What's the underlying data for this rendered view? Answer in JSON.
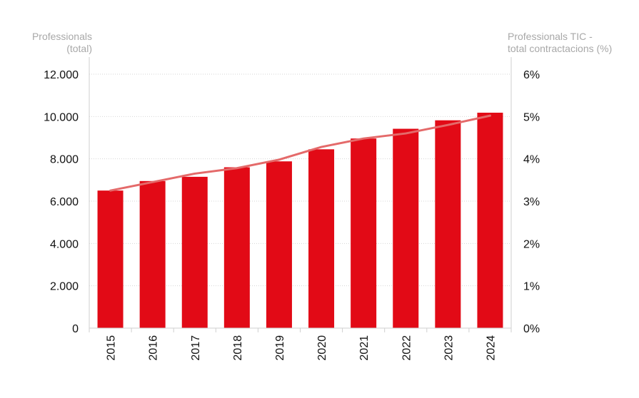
{
  "chart_data": {
    "type": "bar",
    "categories": [
      "2015",
      "2016",
      "2017",
      "2018",
      "2019",
      "2020",
      "2021",
      "2022",
      "2023",
      "2024"
    ],
    "series": [
      {
        "type": "bar",
        "axis": "left",
        "values": [
          6500,
          6950,
          7150,
          7600,
          7880,
          8450,
          8960,
          9420,
          9820,
          10180
        ]
      },
      {
        "type": "line",
        "axis": "right",
        "values": [
          3.25,
          3.45,
          3.65,
          3.78,
          3.98,
          4.28,
          4.48,
          4.6,
          4.8,
          5.02
        ]
      }
    ],
    "ylabel_left": [
      "Professionals",
      "(total)"
    ],
    "ylabel_right": [
      "Professionals TIC -",
      "total contractacions (%)"
    ],
    "ylim_left": [
      0,
      12000
    ],
    "ylim_right": [
      0,
      6
    ],
    "yticks_left": [
      "0",
      "2.000",
      "4.000",
      "6.000",
      "8.000",
      "10.000",
      "12.000"
    ],
    "yticks_right": [
      "0%",
      "1%",
      "2%",
      "3%",
      "4%",
      "5%",
      "6%"
    ],
    "grid": true,
    "colors": {
      "bar": "#e20a16",
      "line": "#e46a6a",
      "grid": "#d6d6d6",
      "axis": "#cfcfcf",
      "axis_title": "#a8a8a8",
      "tick_text": "#111111"
    }
  }
}
